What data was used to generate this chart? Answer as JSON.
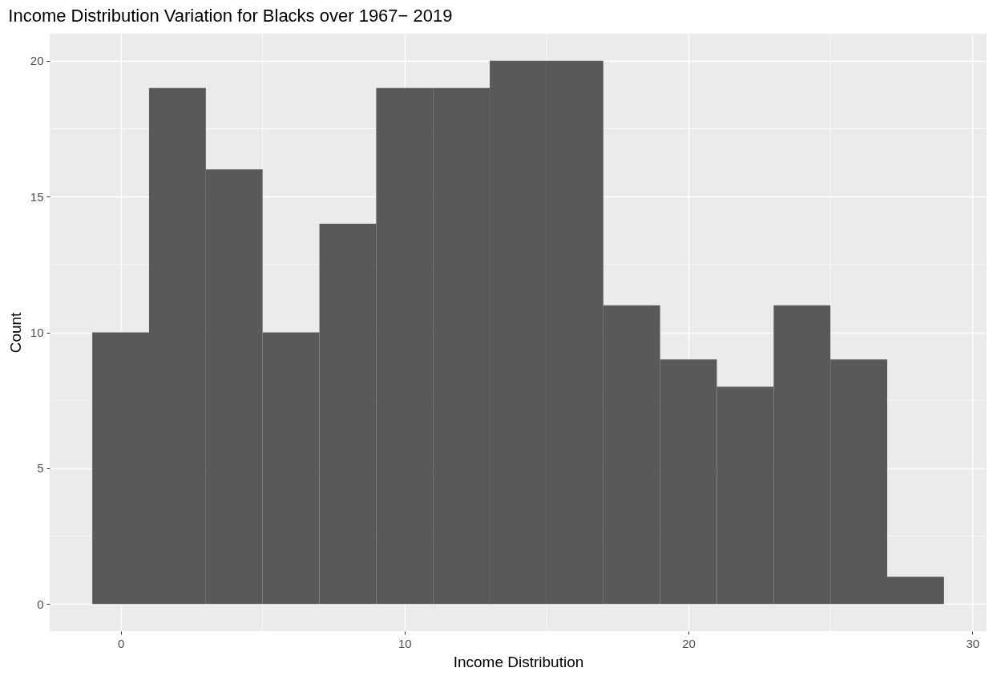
{
  "chart_data": {
    "type": "histogram",
    "title": "Income Distribution Variation for Blacks over 1967− 2019",
    "xlabel": "Income Distribution",
    "ylabel": "Count",
    "bins": [
      -1,
      1,
      3,
      5,
      7,
      9,
      11,
      13,
      15,
      17,
      19,
      21,
      23,
      25,
      27,
      29
    ],
    "values": [
      10,
      19,
      16,
      10,
      14,
      19,
      19,
      20,
      20,
      11,
      9,
      8,
      11,
      9,
      1
    ],
    "color": "#595959",
    "xlim": [
      -2.5,
      30.5
    ],
    "xticks": [
      0,
      10,
      20,
      30
    ],
    "ylim": [
      -1,
      21
    ],
    "yticks": [
      0,
      5,
      10,
      15,
      20
    ],
    "grid": true
  }
}
